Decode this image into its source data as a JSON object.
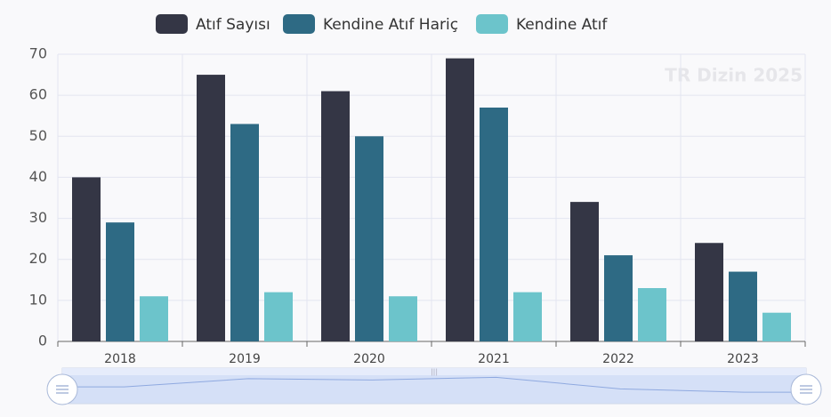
{
  "chart_data": {
    "type": "bar",
    "categories": [
      "2018",
      "2019",
      "2020",
      "2021",
      "2022",
      "2023"
    ],
    "series": [
      {
        "name": "Atıf Sayısı",
        "color": "#343645",
        "values": [
          40,
          65,
          61,
          69,
          34,
          24
        ]
      },
      {
        "name": "Kendine Atıf Hariç",
        "color": "#2e6a84",
        "values": [
          29,
          53,
          50,
          57,
          21,
          17
        ]
      },
      {
        "name": "Kendine Atıf",
        "color": "#6cc4cb",
        "values": [
          11,
          12,
          11,
          12,
          13,
          7
        ]
      }
    ],
    "ylim": [
      0,
      70
    ],
    "yticks": [
      0,
      10,
      20,
      30,
      40,
      50,
      60,
      70
    ],
    "grid": true,
    "legend": "top",
    "watermark": "TR Dizin 2025"
  }
}
